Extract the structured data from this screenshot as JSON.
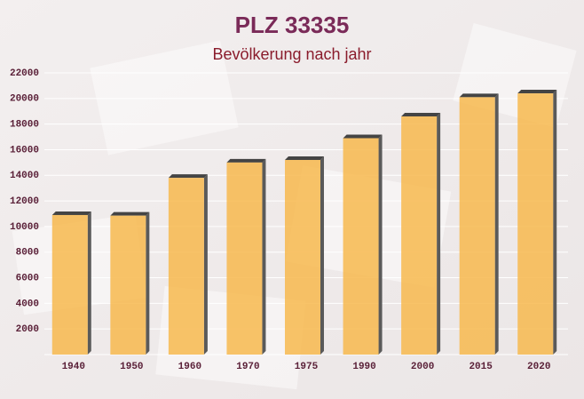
{
  "chart_data": {
    "type": "bar",
    "title": "PLZ 33335",
    "subtitle": "Bevölkerung nach jahr",
    "categories": [
      "1940",
      "1950",
      "1960",
      "1970",
      "1975",
      "1990",
      "2000",
      "2015",
      "2020"
    ],
    "values": [
      10900,
      10850,
      13800,
      15000,
      15200,
      16900,
      18600,
      20100,
      20400
    ],
    "color": "#f7b84e",
    "ylim": [
      0,
      22000
    ],
    "yticks": [
      2000,
      4000,
      6000,
      8000,
      10000,
      12000,
      14000,
      16000,
      18000,
      20000,
      22000
    ],
    "grid": true
  }
}
